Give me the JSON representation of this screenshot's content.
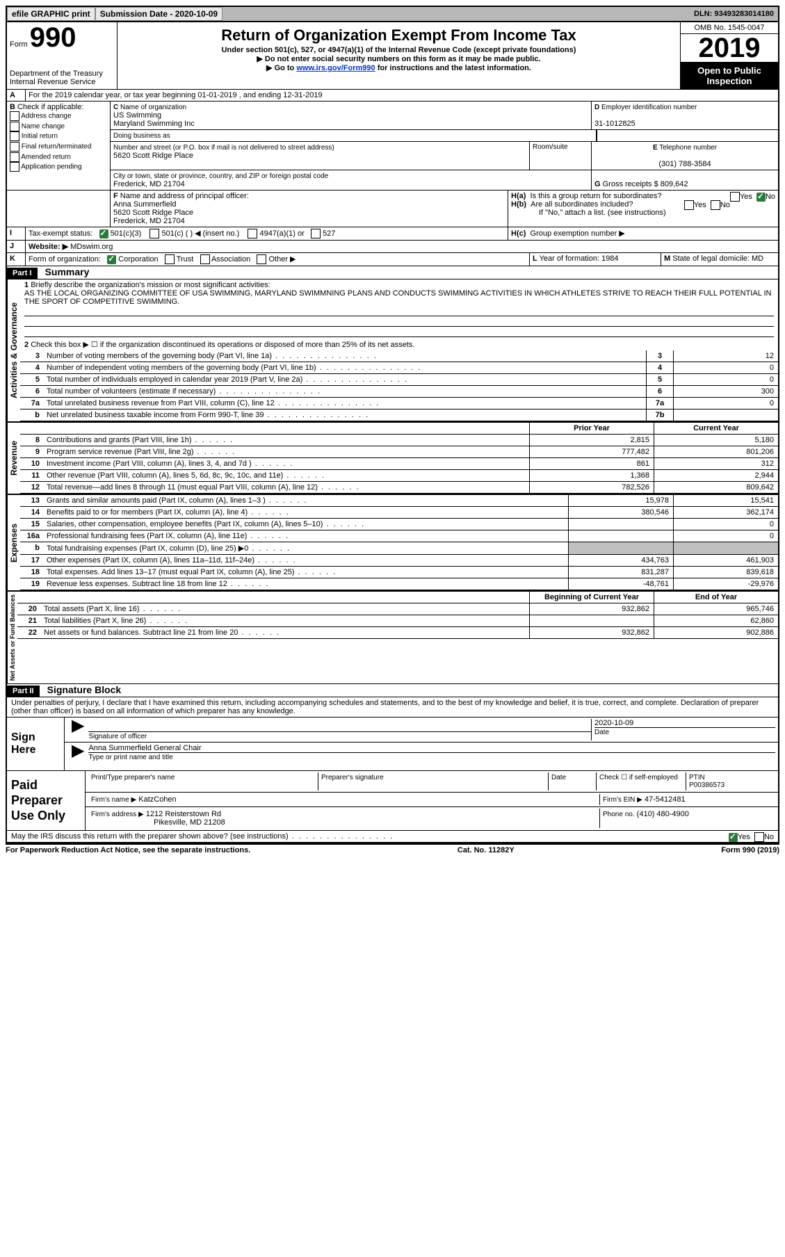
{
  "topbar": {
    "efile": "efile GRAPHIC print",
    "sub_label": "Submission Date - 2020-10-09",
    "dln": "DLN: 93493283014180"
  },
  "header": {
    "form_word": "Form",
    "form_num": "990",
    "dept": "Department of the Treasury\nInternal Revenue Service",
    "title": "Return of Organization Exempt From Income Tax",
    "sub1": "Under section 501(c), 527, or 4947(a)(1) of the Internal Revenue Code (except private foundations)",
    "sub2": "Do not enter social security numbers on this form as it may be made public.",
    "sub3_pre": "Go to ",
    "sub3_link": "www.irs.gov/Form990",
    "sub3_post": " for instructions and the latest information.",
    "omb": "OMB No. 1545-0047",
    "year": "2019",
    "open": "Open to Public Inspection"
  },
  "A": {
    "text": "For the 2019 calendar year, or tax year beginning 01-01-2019    , and ending 12-31-2019"
  },
  "B": {
    "label": "Check if applicable:",
    "opts": [
      "Address change",
      "Name change",
      "Initial return",
      "Final return/terminated",
      "Amended return",
      "Application pending"
    ]
  },
  "C": {
    "name_label": "Name of organization",
    "name1": "US Swimming",
    "name2": "Maryland Swimming Inc",
    "dba_label": "Doing business as",
    "addr_label": "Number and street (or P.O. box if mail is not delivered to street address)",
    "room_label": "Room/suite",
    "addr": "5620 Scott Ridge Place",
    "city_label": "City or town, state or province, country, and ZIP or foreign postal code",
    "city": "Frederick, MD  21704"
  },
  "D": {
    "label": "Employer identification number",
    "val": "31-1012825"
  },
  "E": {
    "label": "Telephone number",
    "val": "(301) 788-3584"
  },
  "G": {
    "label": "Gross receipts $ 809,642"
  },
  "F": {
    "label": "Name and address of principal officer:",
    "name": "Anna Summerfield",
    "addr1": "5620 Scott Ridge Place",
    "addr2": "Frederick, MD  21704"
  },
  "H": {
    "a": "Is this a group return for subordinates?",
    "b": "Are all subordinates included?",
    "b_note": "If \"No,\" attach a list. (see instructions)",
    "c": "Group exemption number ▶"
  },
  "I": {
    "label": "Tax-exempt status:",
    "opts": [
      "501(c)(3)",
      "501(c) (  ) ◀ (insert no.)",
      "4947(a)(1) or",
      "527"
    ]
  },
  "J": {
    "label": "Website: ▶",
    "val": "MDswim.org"
  },
  "K": {
    "label": "Form of organization:",
    "opts": [
      "Corporation",
      "Trust",
      "Association",
      "Other ▶"
    ]
  },
  "L": {
    "label": "Year of formation: 1984"
  },
  "M": {
    "label": "State of legal domicile: MD"
  },
  "part1": {
    "hdr": "Part I",
    "title": "Summary"
  },
  "summary": {
    "l1_label": "Briefly describe the organization's mission or most significant activities:",
    "l1_text": "AS THE LOCAL ORGANIZING COMMITTEE OF USA SWIMMING, MARYLAND SWIMMNING PLANS AND CONDUCTS SWIMMING ACTIVITIES IN WHICH ATHLETES STRIVE TO REACH THEIR FULL POTENTIAL IN THE SPORT OF COMPETITIVE SWIMMING.",
    "l2": "Check this box ▶ ☐ if the organization discontinued its operations or disposed of more than 25% of its net assets.",
    "lines": [
      {
        "n": "3",
        "d": "Number of voting members of the governing body (Part VI, line 1a)",
        "box": "3",
        "v": "12"
      },
      {
        "n": "4",
        "d": "Number of independent voting members of the governing body (Part VI, line 1b)",
        "box": "4",
        "v": "0"
      },
      {
        "n": "5",
        "d": "Total number of individuals employed in calendar year 2019 (Part V, line 2a)",
        "box": "5",
        "v": "0"
      },
      {
        "n": "6",
        "d": "Total number of volunteers (estimate if necessary)",
        "box": "6",
        "v": "300"
      },
      {
        "n": "7a",
        "d": "Total unrelated business revenue from Part VIII, column (C), line 12",
        "box": "7a",
        "v": "0"
      },
      {
        "n": "b",
        "d": "Net unrelated business taxable income from Form 990-T, line 39",
        "box": "7b",
        "v": ""
      }
    ],
    "col_prior": "Prior Year",
    "col_curr": "Current Year",
    "revenue": [
      {
        "n": "8",
        "d": "Contributions and grants (Part VIII, line 1h)",
        "p": "2,815",
        "c": "5,180"
      },
      {
        "n": "9",
        "d": "Program service revenue (Part VIII, line 2g)",
        "p": "777,482",
        "c": "801,206"
      },
      {
        "n": "10",
        "d": "Investment income (Part VIII, column (A), lines 3, 4, and 7d )",
        "p": "861",
        "c": "312"
      },
      {
        "n": "11",
        "d": "Other revenue (Part VIII, column (A), lines 5, 6d, 8c, 9c, 10c, and 11e)",
        "p": "1,368",
        "c": "2,944"
      },
      {
        "n": "12",
        "d": "Total revenue—add lines 8 through 11 (must equal Part VIII, column (A), line 12)",
        "p": "782,526",
        "c": "809,642"
      }
    ],
    "expenses": [
      {
        "n": "13",
        "d": "Grants and similar amounts paid (Part IX, column (A), lines 1–3 )",
        "p": "15,978",
        "c": "15,541"
      },
      {
        "n": "14",
        "d": "Benefits paid to or for members (Part IX, column (A), line 4)",
        "p": "380,546",
        "c": "362,174"
      },
      {
        "n": "15",
        "d": "Salaries, other compensation, employee benefits (Part IX, column (A), lines 5–10)",
        "p": "",
        "c": "0"
      },
      {
        "n": "16a",
        "d": "Professional fundraising fees (Part IX, column (A), line 11e)",
        "p": "",
        "c": "0"
      },
      {
        "n": "b",
        "d": "Total fundraising expenses (Part IX, column (D), line 25) ▶0",
        "p": "grey",
        "c": "grey"
      },
      {
        "n": "17",
        "d": "Other expenses (Part IX, column (A), lines 11a–11d, 11f–24e)",
        "p": "434,763",
        "c": "461,903"
      },
      {
        "n": "18",
        "d": "Total expenses. Add lines 13–17 (must equal Part IX, column (A), line 25)",
        "p": "831,287",
        "c": "839,618"
      },
      {
        "n": "19",
        "d": "Revenue less expenses. Subtract line 18 from line 12",
        "p": "-48,761",
        "c": "-29,976"
      }
    ],
    "col_begin": "Beginning of Current Year",
    "col_end": "End of Year",
    "netassets": [
      {
        "n": "20",
        "d": "Total assets (Part X, line 16)",
        "p": "932,862",
        "c": "965,746"
      },
      {
        "n": "21",
        "d": "Total liabilities (Part X, line 26)",
        "p": "",
        "c": "62,860"
      },
      {
        "n": "22",
        "d": "Net assets or fund balances. Subtract line 21 from line 20",
        "p": "932,862",
        "c": "902,886"
      }
    ]
  },
  "sidelabels": {
    "ag": "Activities & Governance",
    "rev": "Revenue",
    "exp": "Expenses",
    "na": "Net Assets or Fund Balances"
  },
  "part2": {
    "hdr": "Part II",
    "title": "Signature Block"
  },
  "sig": {
    "perjury": "Under penalties of perjury, I declare that I have examined this return, including accompanying schedules and statements, and to the best of my knowledge and belief, it is true, correct, and complete. Declaration of preparer (other than officer) is based on all information of which preparer has any knowledge.",
    "here": "Sign Here",
    "sig_officer": "Signature of officer",
    "date_label": "Date",
    "date_val": "2020-10-09",
    "name_title": "Anna Summerfield General Chair",
    "type_label": "Type or print name and title"
  },
  "paid": {
    "label": "Paid Preparer Use Only",
    "h1": "Print/Type preparer's name",
    "h2": "Preparer's signature",
    "h3": "Date",
    "check": "Check ☐ if self-employed",
    "ptin_l": "PTIN",
    "ptin": "P00386573",
    "firm_name_l": "Firm's name    ▶",
    "firm_name": "KatzCohen",
    "firm_ein_l": "Firm's EIN ▶",
    "firm_ein": "47-5412481",
    "firm_addr_l": "Firm's address ▶",
    "firm_addr1": "1212 Reisterstown Rd",
    "firm_addr2": "Pikesville, MD  21208",
    "phone_l": "Phone no.",
    "phone": "(410) 480-4900"
  },
  "discuss": "May the IRS discuss this return with the preparer shown above? (see instructions)",
  "footer": {
    "left": "For Paperwork Reduction Act Notice, see the separate instructions.",
    "mid": "Cat. No. 11282Y",
    "right": "Form 990 (2019)"
  }
}
